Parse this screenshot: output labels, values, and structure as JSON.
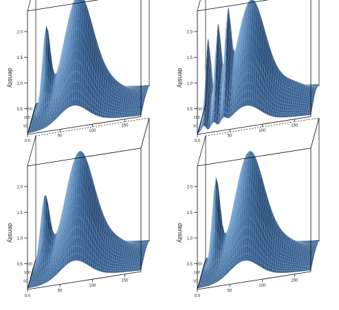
{
  "chart_data": [
    {
      "type": "surface",
      "zlabel": "density",
      "z_ticks": [
        "0.5",
        "1.0",
        "1.5",
        "2.0"
      ],
      "x_ticks": [
        "0.0",
        "50",
        "100",
        "150"
      ],
      "y_ticks": [
        "50",
        "100",
        "150"
      ],
      "zlim": [
        0,
        2.4
      ],
      "xlim": [
        0,
        175
      ],
      "grid": false,
      "legend": "none",
      "peaks": [
        {
          "x": 22,
          "z": 1.55,
          "spread_x": 6,
          "spread_y": 0.1
        },
        {
          "x": 70,
          "z": 2.05,
          "spread_x": 22,
          "spread_y": 0.3
        },
        {
          "x": 110,
          "z": 0.45,
          "spread_x": 30,
          "spread_y": 0.25
        }
      ]
    },
    {
      "type": "surface",
      "zlabel": "density",
      "z_ticks": [
        "0.5",
        "1.0",
        "1.5",
        "2.0"
      ],
      "x_ticks": [
        "0.0",
        "50",
        "100",
        "150"
      ],
      "y_ticks": [
        "50",
        "100",
        "150"
      ],
      "zlim": [
        0,
        2.4
      ],
      "xlim": [
        0,
        175
      ],
      "grid": false,
      "legend": "none",
      "peaks": [
        {
          "x": 10,
          "z": 1.5,
          "spread_x": 3,
          "spread_y": 0.25
        },
        {
          "x": 25,
          "z": 1.6,
          "spread_x": 4,
          "spread_y": 0.25
        },
        {
          "x": 40,
          "z": 1.45,
          "spread_x": 4,
          "spread_y": 0.25
        },
        {
          "x": 75,
          "z": 2.05,
          "spread_x": 22,
          "spread_y": 0.3
        },
        {
          "x": 130,
          "z": 0.4,
          "spread_x": 30,
          "spread_y": 0.25
        }
      ]
    },
    {
      "type": "surface",
      "zlabel": "density",
      "z_ticks": [
        "0.5",
        "1.0",
        "1.5",
        "2.0"
      ],
      "x_ticks": [
        "0.0",
        "50",
        "100",
        "150"
      ],
      "y_ticks": [
        "50",
        "100",
        "150"
      ],
      "zlim": [
        0,
        2.4
      ],
      "xlim": [
        0,
        175
      ],
      "grid": false,
      "legend": "none",
      "peaks": [
        {
          "x": 20,
          "z": 1.35,
          "spread_x": 7,
          "spread_y": 0.1
        },
        {
          "x": 72,
          "z": 2.05,
          "spread_x": 22,
          "spread_y": 0.3
        },
        {
          "x": 115,
          "z": 0.4,
          "spread_x": 30,
          "spread_y": 0.25
        }
      ]
    },
    {
      "type": "surface",
      "zlabel": "density",
      "z_ticks": [
        "0.5",
        "1.0",
        "1.5",
        "2.0"
      ],
      "x_ticks": [
        "0.0",
        "50",
        "100",
        "150"
      ],
      "y_ticks": [
        "50",
        "100",
        "150"
      ],
      "zlim": [
        0,
        2.4
      ],
      "xlim": [
        0,
        175
      ],
      "grid": false,
      "legend": "none",
      "peaks": [
        {
          "x": 22,
          "z": 1.65,
          "spread_x": 6,
          "spread_y": 0.1
        },
        {
          "x": 72,
          "z": 2.05,
          "spread_x": 22,
          "spread_y": 0.3
        },
        {
          "x": 115,
          "z": 0.4,
          "spread_x": 30,
          "spread_y": 0.25
        }
      ]
    }
  ],
  "colors": {
    "surface_dark": "#1f3d63",
    "surface_mid": "#3a6596",
    "surface_light": "#6e9cc9",
    "mesh": "#c9dcef",
    "axis": "#000000"
  }
}
